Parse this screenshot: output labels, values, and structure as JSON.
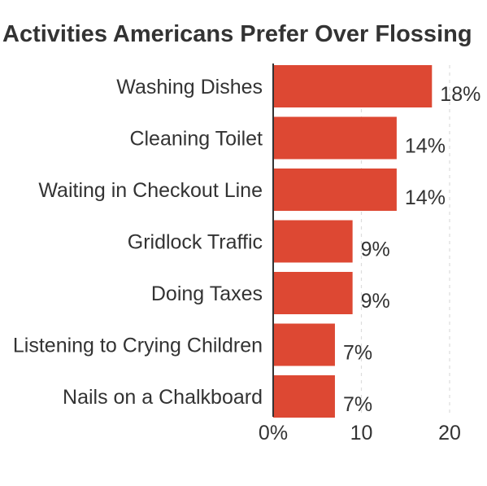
{
  "chart_data": {
    "type": "bar",
    "orientation": "horizontal",
    "title": "Activities Americans Prefer Over Flossing",
    "categories": [
      "Washing Dishes",
      "Cleaning Toilet",
      "Waiting in Checkout Line",
      "Gridlock Traffic",
      "Doing Taxes",
      "Listening to Crying Children",
      "Nails on a Chalkboard"
    ],
    "values": [
      18,
      14,
      14,
      9,
      9,
      7,
      7
    ],
    "value_labels": [
      "18%",
      "14%",
      "14%",
      "9%",
      "9%",
      "7%",
      "7%"
    ],
    "xlim": [
      0,
      20
    ],
    "xticks": [
      0,
      10,
      20
    ],
    "xtick_labels": [
      "0%",
      "10",
      "20"
    ],
    "xlabel": "",
    "ylabel": "",
    "grid": "vertical dashed",
    "legend": "none",
    "bar_color": "#dd4833",
    "text_color": "#333333"
  }
}
